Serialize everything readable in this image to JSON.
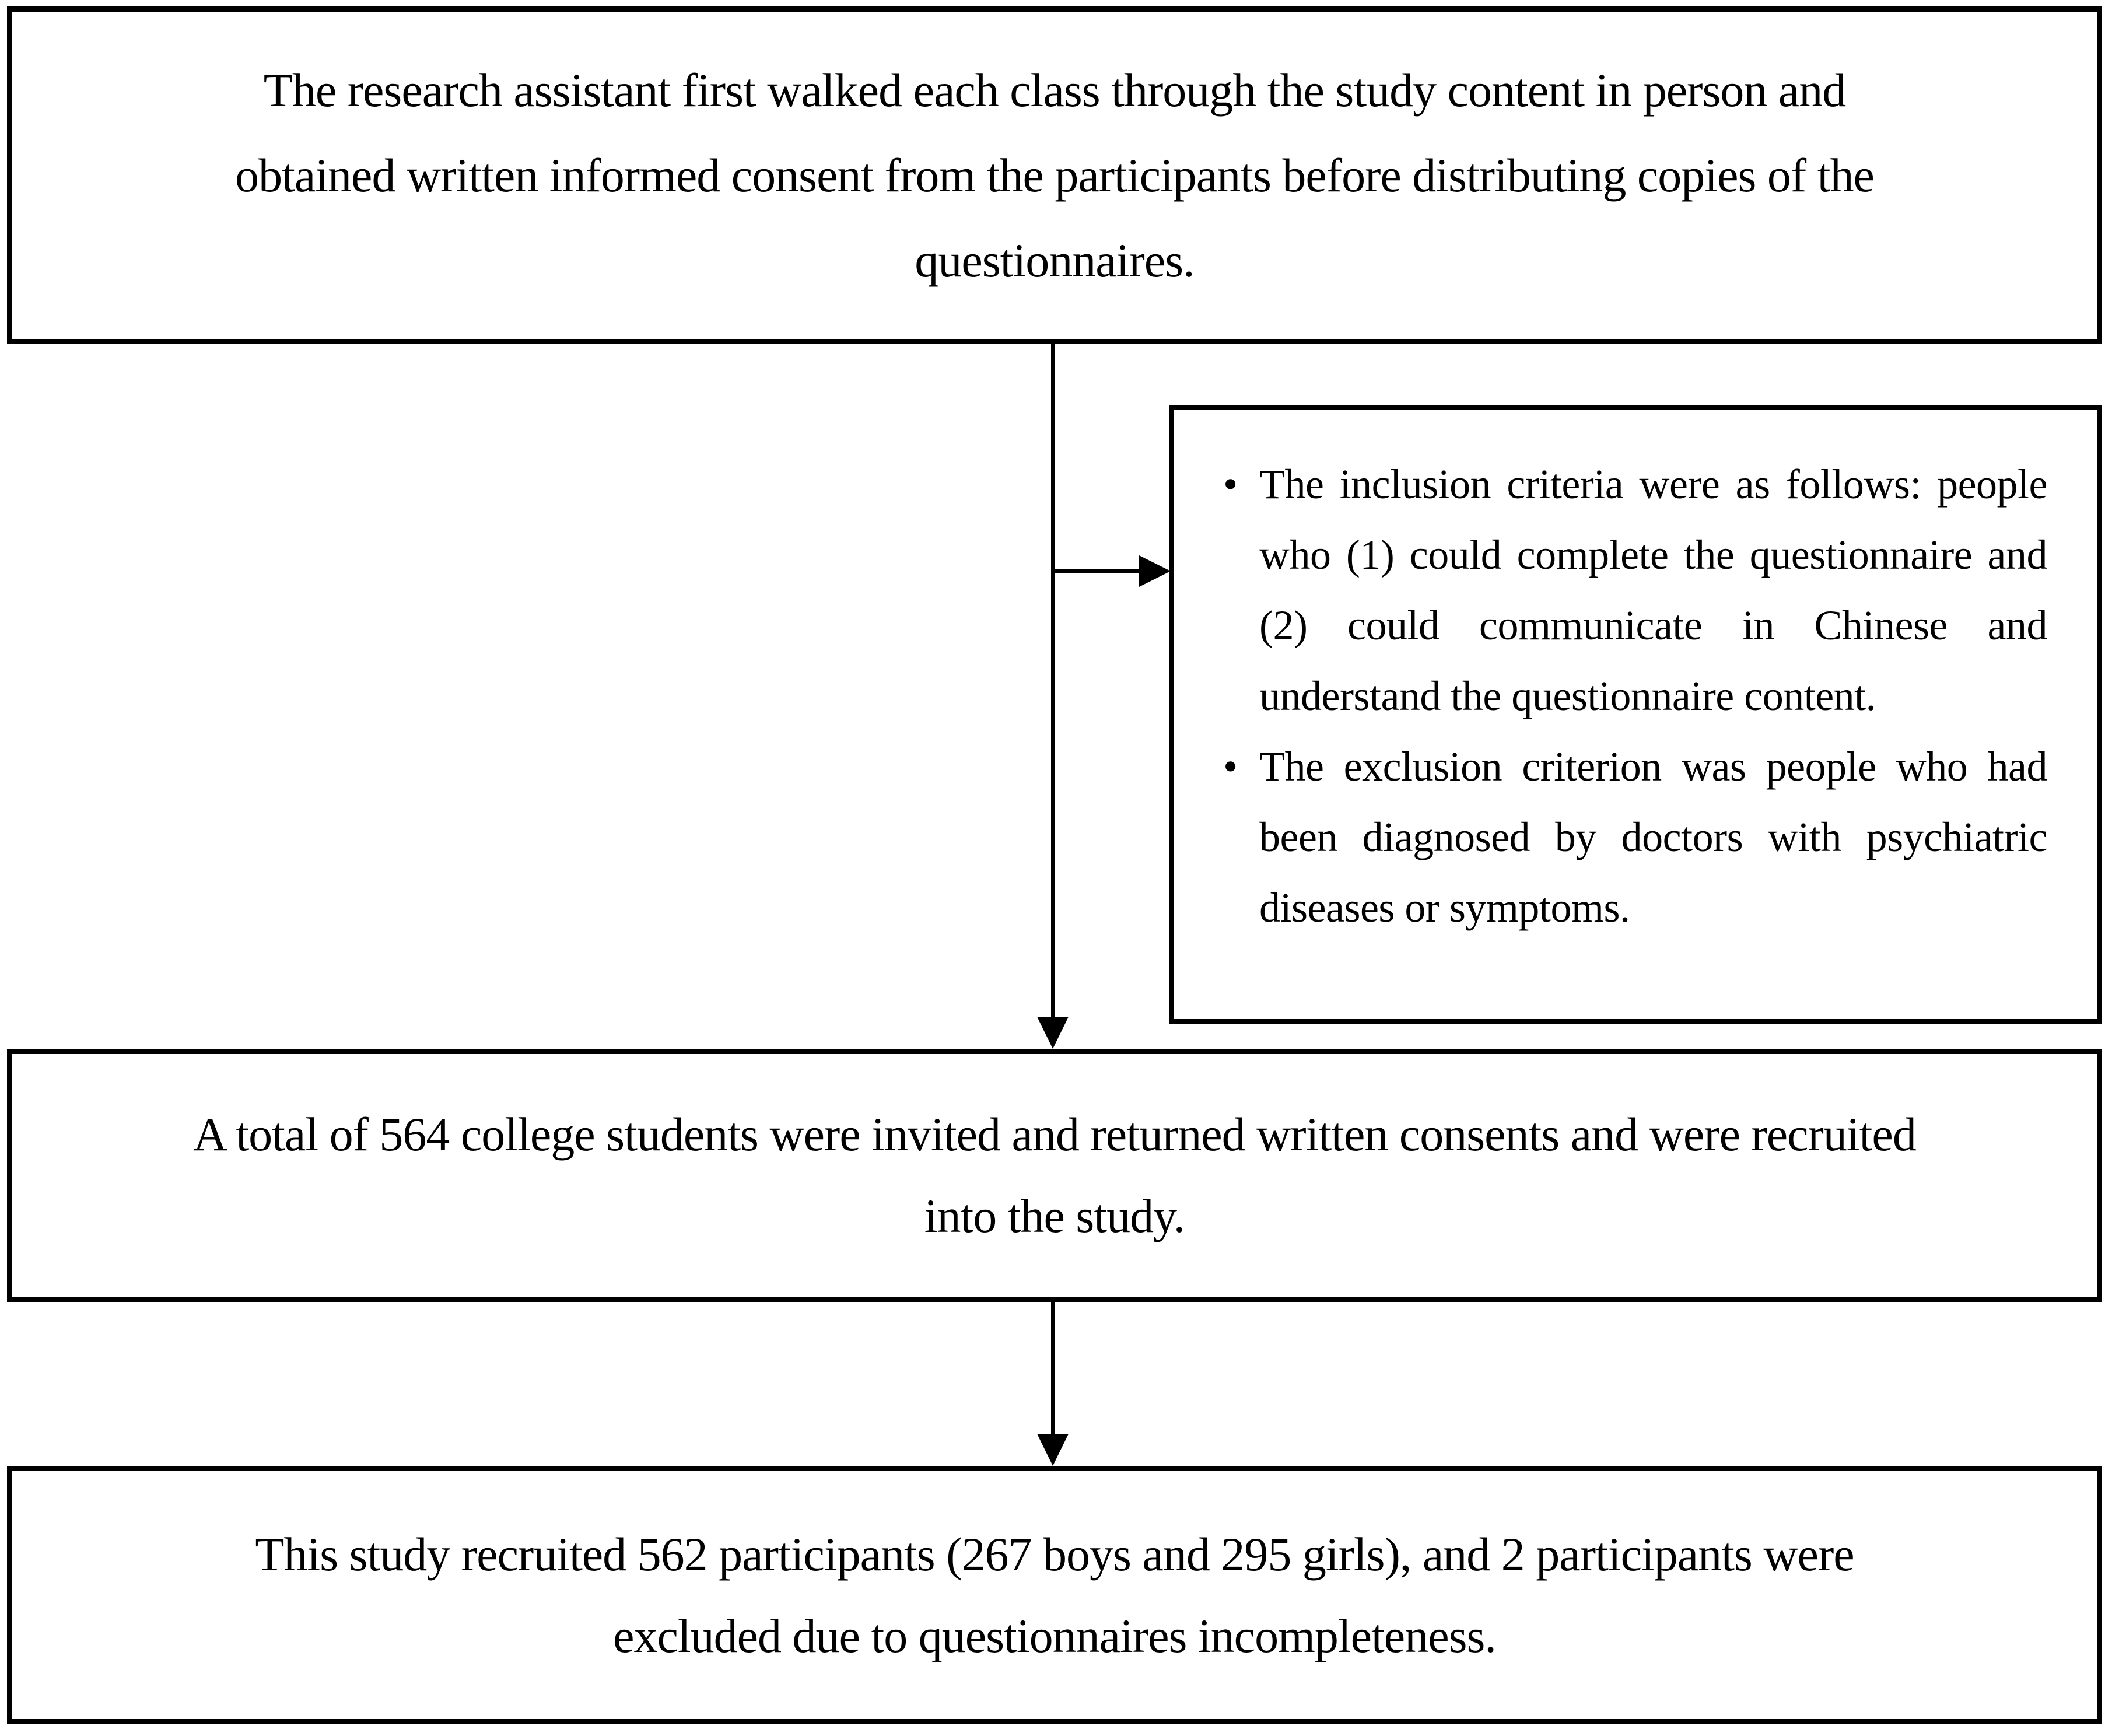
{
  "page": {
    "background_color": "#ffffff",
    "line_color": "#000000"
  },
  "flowchart": {
    "box_procedure": {
      "lines": [
        "The research assistant first walked each class through the study content in person and",
        "obtained written informed consent from the participants before distributing copies of the",
        "questionnaires."
      ]
    },
    "box_criteria": {
      "bullet_char": "•",
      "bullets": [
        "The inclusion criteria were as follows: people who (1) could complete the questionnaire and (2) could communicate in Chinese and understand the questionnaire content.",
        "The exclusion criterion was people who had been diagnosed by doctors with psychiatric diseases or symptoms."
      ]
    },
    "box_recruited": {
      "lines": [
        "A total of 564 college students were invited and returned written consents and were recruited",
        "into the study."
      ]
    },
    "box_final": {
      "lines": [
        "This study recruited 562 participants (267 boys and 295 girls), and 2 participants were",
        "excluded due to questionnaires incompleteness."
      ]
    }
  }
}
